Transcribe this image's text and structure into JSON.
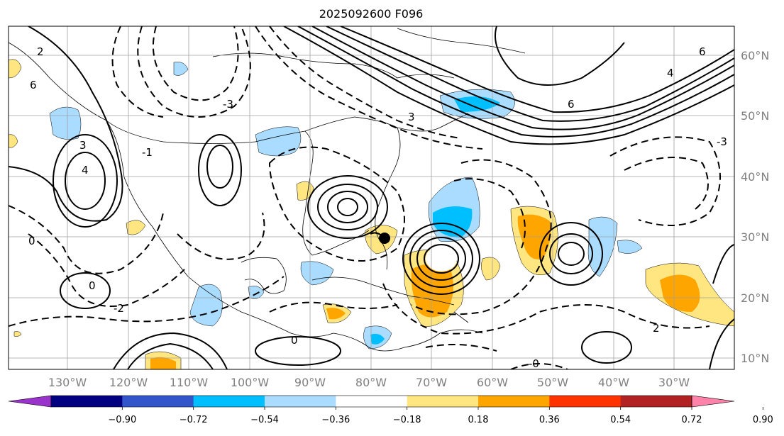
{
  "title": "2025092600 F096",
  "map": {
    "lon_labels": [
      "130°W",
      "120°W",
      "110°W",
      "100°W",
      "90°W",
      "80°W",
      "70°W",
      "60°W",
      "50°W",
      "40°W",
      "30°W"
    ],
    "lat_labels": [
      "60°N",
      "50°N",
      "40°N",
      "30°N",
      "20°N",
      "10°N"
    ],
    "contour_labels": [
      {
        "text": "2"
      },
      {
        "text": "6"
      },
      {
        "text": "3"
      },
      {
        "text": "-1"
      },
      {
        "text": "4"
      },
      {
        "text": "-3"
      },
      {
        "text": "3"
      },
      {
        "text": "6"
      },
      {
        "text": "0"
      },
      {
        "text": "-0"
      },
      {
        "text": "0"
      },
      {
        "text": "6"
      },
      {
        "text": "4"
      },
      {
        "text": "-2"
      },
      {
        "text": "-3"
      },
      {
        "text": "0"
      },
      {
        "text": "2"
      }
    ]
  },
  "colorbar": {
    "colors": [
      "#9933cc",
      "#000080",
      "#3355cc",
      "#00bfff",
      "#aadcff",
      "#ffffff",
      "#ffe680",
      "#ffa500",
      "#ff3300",
      "#b22222",
      "#ff82ab"
    ],
    "ticks": [
      "−0.90",
      "−0.72",
      "−0.54",
      "−0.36",
      "−0.18",
      "0.18",
      "0.36",
      "0.54",
      "0.72",
      "0.90"
    ]
  }
}
